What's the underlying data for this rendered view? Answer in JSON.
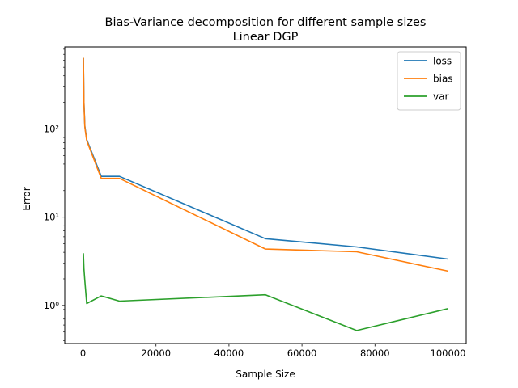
{
  "chart_data": {
    "type": "line",
    "title": "Bias-Variance decomposition for different sample sizes",
    "subtitle": "Linear DGP",
    "xlabel": "Sample Size",
    "ylabel": "Error",
    "yscale": "log",
    "xlim": [
      -5000,
      105000
    ],
    "ylim": [
      0.37,
      850
    ],
    "xticks": [
      0,
      20000,
      40000,
      60000,
      80000,
      100000
    ],
    "xtick_labels": [
      "0",
      "20000",
      "40000",
      "60000",
      "80000",
      "100000"
    ],
    "yticks": [
      1,
      10,
      100
    ],
    "ytick_labels": [
      "10⁰",
      "10¹",
      "10²"
    ],
    "legend_position": "top-right",
    "grid": false,
    "x": [
      100,
      250,
      500,
      1000,
      5000,
      10000,
      50000,
      75000,
      100000
    ],
    "series": [
      {
        "name": "loss",
        "color": "#1f77b4",
        "values": [
          640,
          200,
          108,
          76,
          29,
          29,
          5.7,
          4.6,
          3.35
        ]
      },
      {
        "name": "bias",
        "color": "#ff7f0e",
        "values": [
          640,
          195,
          105,
          74,
          27.5,
          27.5,
          4.35,
          4.05,
          2.45
        ]
      },
      {
        "name": "var",
        "color": "#2ca02c",
        "values": [
          3.9,
          2.6,
          1.9,
          1.05,
          1.28,
          1.12,
          1.32,
          0.52,
          0.92
        ]
      }
    ]
  }
}
